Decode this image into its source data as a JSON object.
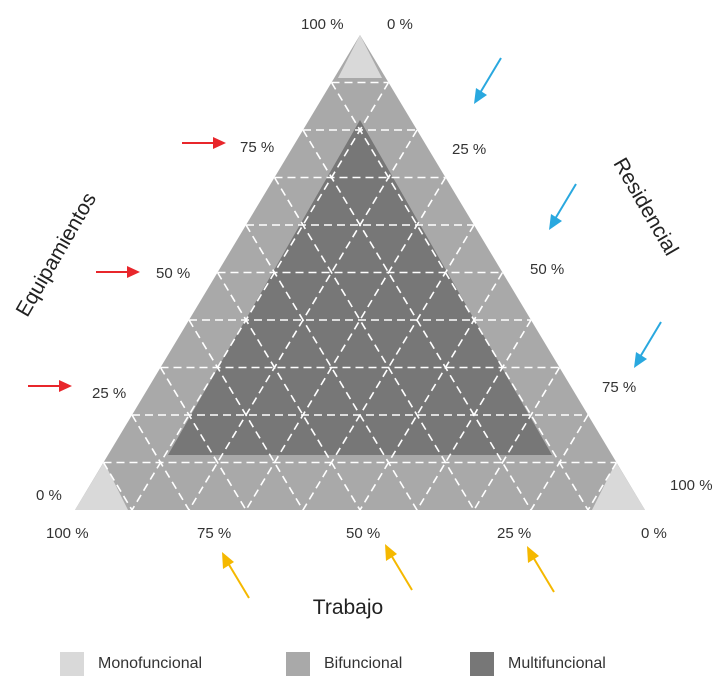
{
  "axes": {
    "left": {
      "title": "Equipamientos",
      "ticks": [
        "0 %",
        "25 %",
        "50 %",
        "75 %",
        "100 %"
      ]
    },
    "right": {
      "title": "Residencial",
      "ticks": [
        "0 %",
        "25 %",
        "50 %",
        "75 %",
        "100 %"
      ]
    },
    "bottom": {
      "title": "Trabajo",
      "ticks": [
        "100 %",
        "75 %",
        "50 %",
        "25 %",
        "0 %"
      ]
    }
  },
  "legend": [
    {
      "label": "Monofuncional",
      "color": "#d9d9d9"
    },
    {
      "label": "Bifuncional",
      "color": "#a9a9a9"
    },
    {
      "label": "Multifuncional",
      "color": "#777777"
    }
  ],
  "colors": {
    "monofuncional": "#d9d9d9",
    "bifuncional": "#a9a9a9",
    "multifuncional": "#777777",
    "grid": "#ffffff",
    "arrow_equipamientos": "#e8262b",
    "arrow_residencial": "#29a8df",
    "arrow_trabajo": "#f5b800"
  }
}
